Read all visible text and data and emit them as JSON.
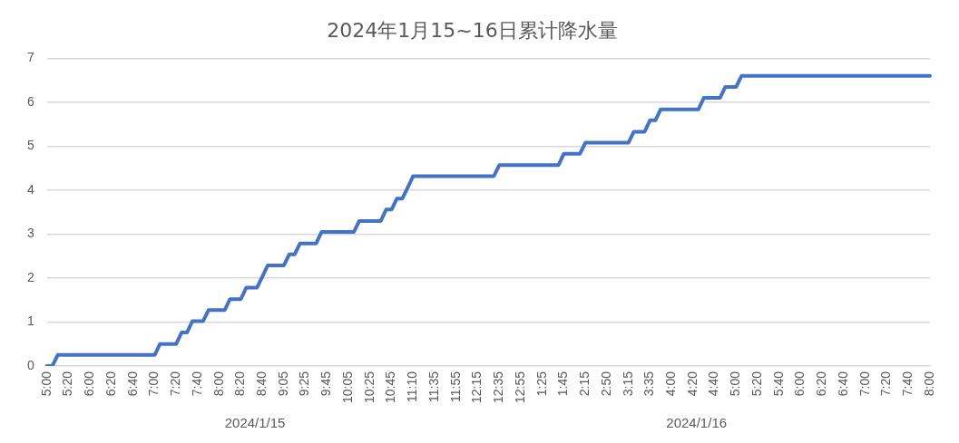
{
  "chart_data": {
    "type": "line",
    "title": "2024年1月15~16日累计降水量",
    "categories": [
      "5:00",
      null,
      null,
      null,
      "5:20",
      null,
      null,
      null,
      "6:00",
      null,
      null,
      null,
      "6:20",
      null,
      null,
      null,
      "6:40",
      null,
      null,
      null,
      "7:00",
      null,
      null,
      null,
      "7:20",
      null,
      null,
      null,
      "7:40",
      null,
      null,
      null,
      "8:00",
      null,
      null,
      null,
      "8:20",
      null,
      null,
      null,
      "8:40",
      null,
      null,
      null,
      "9:05",
      null,
      null,
      null,
      "9:25",
      null,
      null,
      null,
      "9:45",
      null,
      null,
      null,
      "10:05",
      null,
      null,
      null,
      "10:25",
      null,
      null,
      null,
      "10:45",
      null,
      null,
      null,
      "11:10",
      null,
      null,
      null,
      "11:35",
      null,
      null,
      null,
      "11:55",
      null,
      null,
      null,
      "12:15",
      null,
      null,
      null,
      "12:35",
      null,
      null,
      null,
      "12:55",
      null,
      null,
      null,
      "1:25",
      null,
      null,
      null,
      "1:45",
      null,
      null,
      null,
      "2:15",
      null,
      null,
      null,
      "2:50",
      null,
      null,
      null,
      "3:15",
      null,
      null,
      null,
      "3:35",
      null,
      null,
      null,
      "4:00",
      null,
      null,
      null,
      "4:20",
      null,
      null,
      null,
      "4:40",
      null,
      null,
      null,
      "5:00",
      null,
      null,
      null,
      "5:20",
      null,
      null,
      null,
      "5:40",
      null,
      null,
      null,
      "6:00",
      null,
      null,
      null,
      "6:20",
      null,
      null,
      null,
      "6:40",
      null,
      null,
      null,
      "7:00",
      null,
      null,
      null,
      "7:20",
      null,
      null,
      null,
      "7:40",
      null,
      null,
      null,
      "8:00"
    ],
    "series": [
      {
        "color": "#4472c4",
        "values": [
          0,
          0,
          0.25,
          0.25,
          0.25,
          0.25,
          0.25,
          0.25,
          0.25,
          0.25,
          0.25,
          0.25,
          0.25,
          0.25,
          0.25,
          0.25,
          0.25,
          0.25,
          0.25,
          0.25,
          0.25,
          0.5,
          0.5,
          0.5,
          0.5,
          0.76,
          0.76,
          1.02,
          1.02,
          1.02,
          1.27,
          1.27,
          1.27,
          1.27,
          1.52,
          1.52,
          1.52,
          1.78,
          1.78,
          1.78,
          2.03,
          2.29,
          2.29,
          2.29,
          2.29,
          2.54,
          2.54,
          2.79,
          2.79,
          2.79,
          2.79,
          3.05,
          3.05,
          3.05,
          3.05,
          3.05,
          3.05,
          3.05,
          3.3,
          3.3,
          3.3,
          3.3,
          3.3,
          3.56,
          3.56,
          3.81,
          3.81,
          4.06,
          4.32,
          4.32,
          4.32,
          4.32,
          4.32,
          4.32,
          4.32,
          4.32,
          4.32,
          4.32,
          4.32,
          4.32,
          4.32,
          4.32,
          4.32,
          4.32,
          4.57,
          4.57,
          4.57,
          4.57,
          4.57,
          4.57,
          4.57,
          4.57,
          4.57,
          4.57,
          4.57,
          4.57,
          4.83,
          4.83,
          4.83,
          4.83,
          5.08,
          5.08,
          5.08,
          5.08,
          5.08,
          5.08,
          5.08,
          5.08,
          5.08,
          5.33,
          5.33,
          5.33,
          5.59,
          5.59,
          5.84,
          5.84,
          5.84,
          5.84,
          5.84,
          5.84,
          5.84,
          5.84,
          6.1,
          6.1,
          6.1,
          6.1,
          6.35,
          6.35,
          6.35,
          6.6,
          6.6,
          6.6,
          6.6,
          6.6,
          6.6,
          6.6,
          6.6,
          6.6,
          6.6,
          6.6,
          6.6,
          6.6,
          6.6,
          6.6,
          6.6,
          6.6,
          6.6,
          6.6,
          6.6,
          6.6,
          6.6,
          6.6,
          6.6,
          6.6,
          6.6,
          6.6,
          6.6,
          6.6,
          6.6,
          6.6,
          6.6,
          6.6,
          6.6,
          6.6,
          6.6
        ]
      }
    ],
    "ylim": [
      0,
      7
    ],
    "yticks": [
      0,
      1,
      2,
      3,
      4,
      5,
      6,
      7
    ],
    "grid": "y",
    "legend": false,
    "marker": "none",
    "line_style": "solid",
    "annotations": [
      "2024/1/15",
      "2024/1/16"
    ]
  }
}
